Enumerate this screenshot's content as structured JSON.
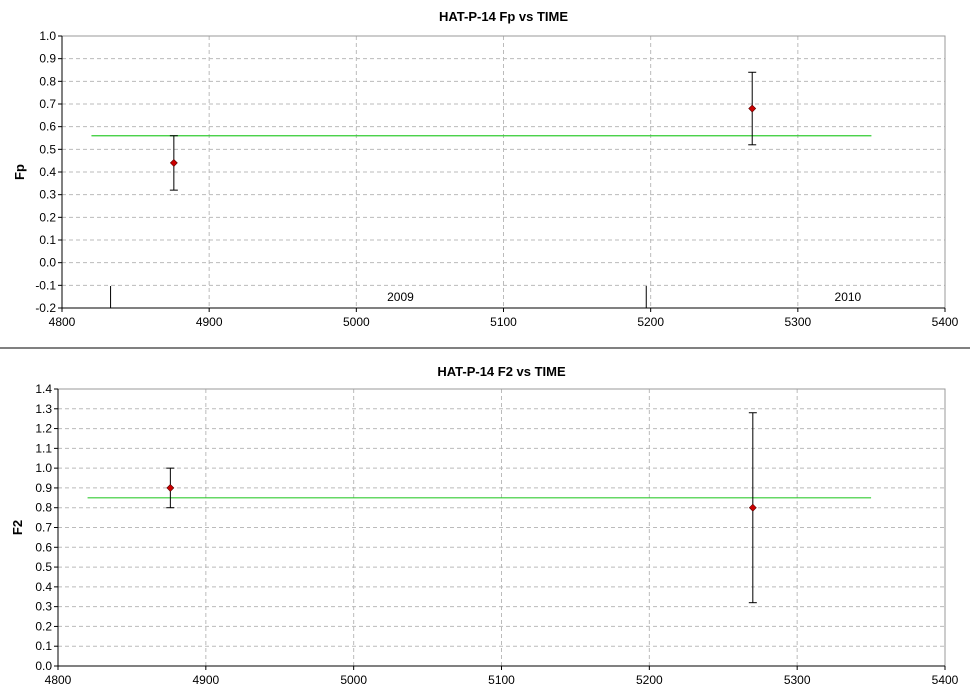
{
  "chart_data": [
    {
      "type": "scatter",
      "title": "HAT-P-14 Fp vs TIME",
      "xlabel": "",
      "ylabel": "Fp",
      "xlim": [
        4800,
        5400
      ],
      "ylim": [
        -0.2,
        1.0
      ],
      "x_ticks": [
        "4800",
        "4900",
        "5000",
        "5100",
        "5200",
        "5300",
        "5400"
      ],
      "y_ticks": [
        "-0.2",
        "-0.1",
        "0.0",
        "0.1",
        "0.2",
        "0.3",
        "0.4",
        "0.5",
        "0.6",
        "0.7",
        "0.8",
        "0.9",
        "1.0"
      ],
      "grid": true,
      "points": [
        {
          "x": 4876,
          "y": 0.44,
          "err_low": 0.32,
          "err_high": 0.56
        },
        {
          "x": 5269,
          "y": 0.68,
          "err_low": 0.52,
          "err_high": 0.84
        }
      ],
      "mean_line": {
        "y": 0.56,
        "x_start": 4820,
        "x_end": 5350,
        "color": "#33cc33"
      },
      "year_markers": [
        {
          "x": 4833,
          "label": ""
        },
        {
          "x": 5197,
          "label": ""
        }
      ],
      "year_labels": [
        {
          "x": 5030,
          "label": "2009"
        },
        {
          "x": 5334,
          "label": "2010"
        }
      ],
      "colors": {
        "marker": "#cc0000",
        "errorbar": "#000000",
        "grid": "#bbbbbb"
      }
    },
    {
      "type": "scatter",
      "title": "HAT-P-14 F2 vs TIME",
      "xlabel": "",
      "ylabel": "F2",
      "xlim": [
        4800,
        5400
      ],
      "ylim": [
        0.0,
        1.4
      ],
      "x_ticks": [
        "4800",
        "4900",
        "5000",
        "5100",
        "5200",
        "5300",
        "5400"
      ],
      "y_ticks": [
        "0.0",
        "0.1",
        "0.2",
        "0.3",
        "0.4",
        "0.5",
        "0.6",
        "0.7",
        "0.8",
        "0.9",
        "1.0",
        "1.1",
        "1.2",
        "1.3",
        "1.4"
      ],
      "grid": true,
      "points": [
        {
          "x": 4876,
          "y": 0.9,
          "err_low": 0.8,
          "err_high": 1.0
        },
        {
          "x": 5270,
          "y": 0.8,
          "err_low": 0.32,
          "err_high": 1.28
        }
      ],
      "mean_line": {
        "y": 0.85,
        "x_start": 4820,
        "x_end": 5350,
        "color": "#33cc33"
      },
      "year_markers": [],
      "year_labels": [],
      "colors": {
        "marker": "#cc0000",
        "errorbar": "#000000",
        "grid": "#bbbbbb"
      }
    }
  ]
}
